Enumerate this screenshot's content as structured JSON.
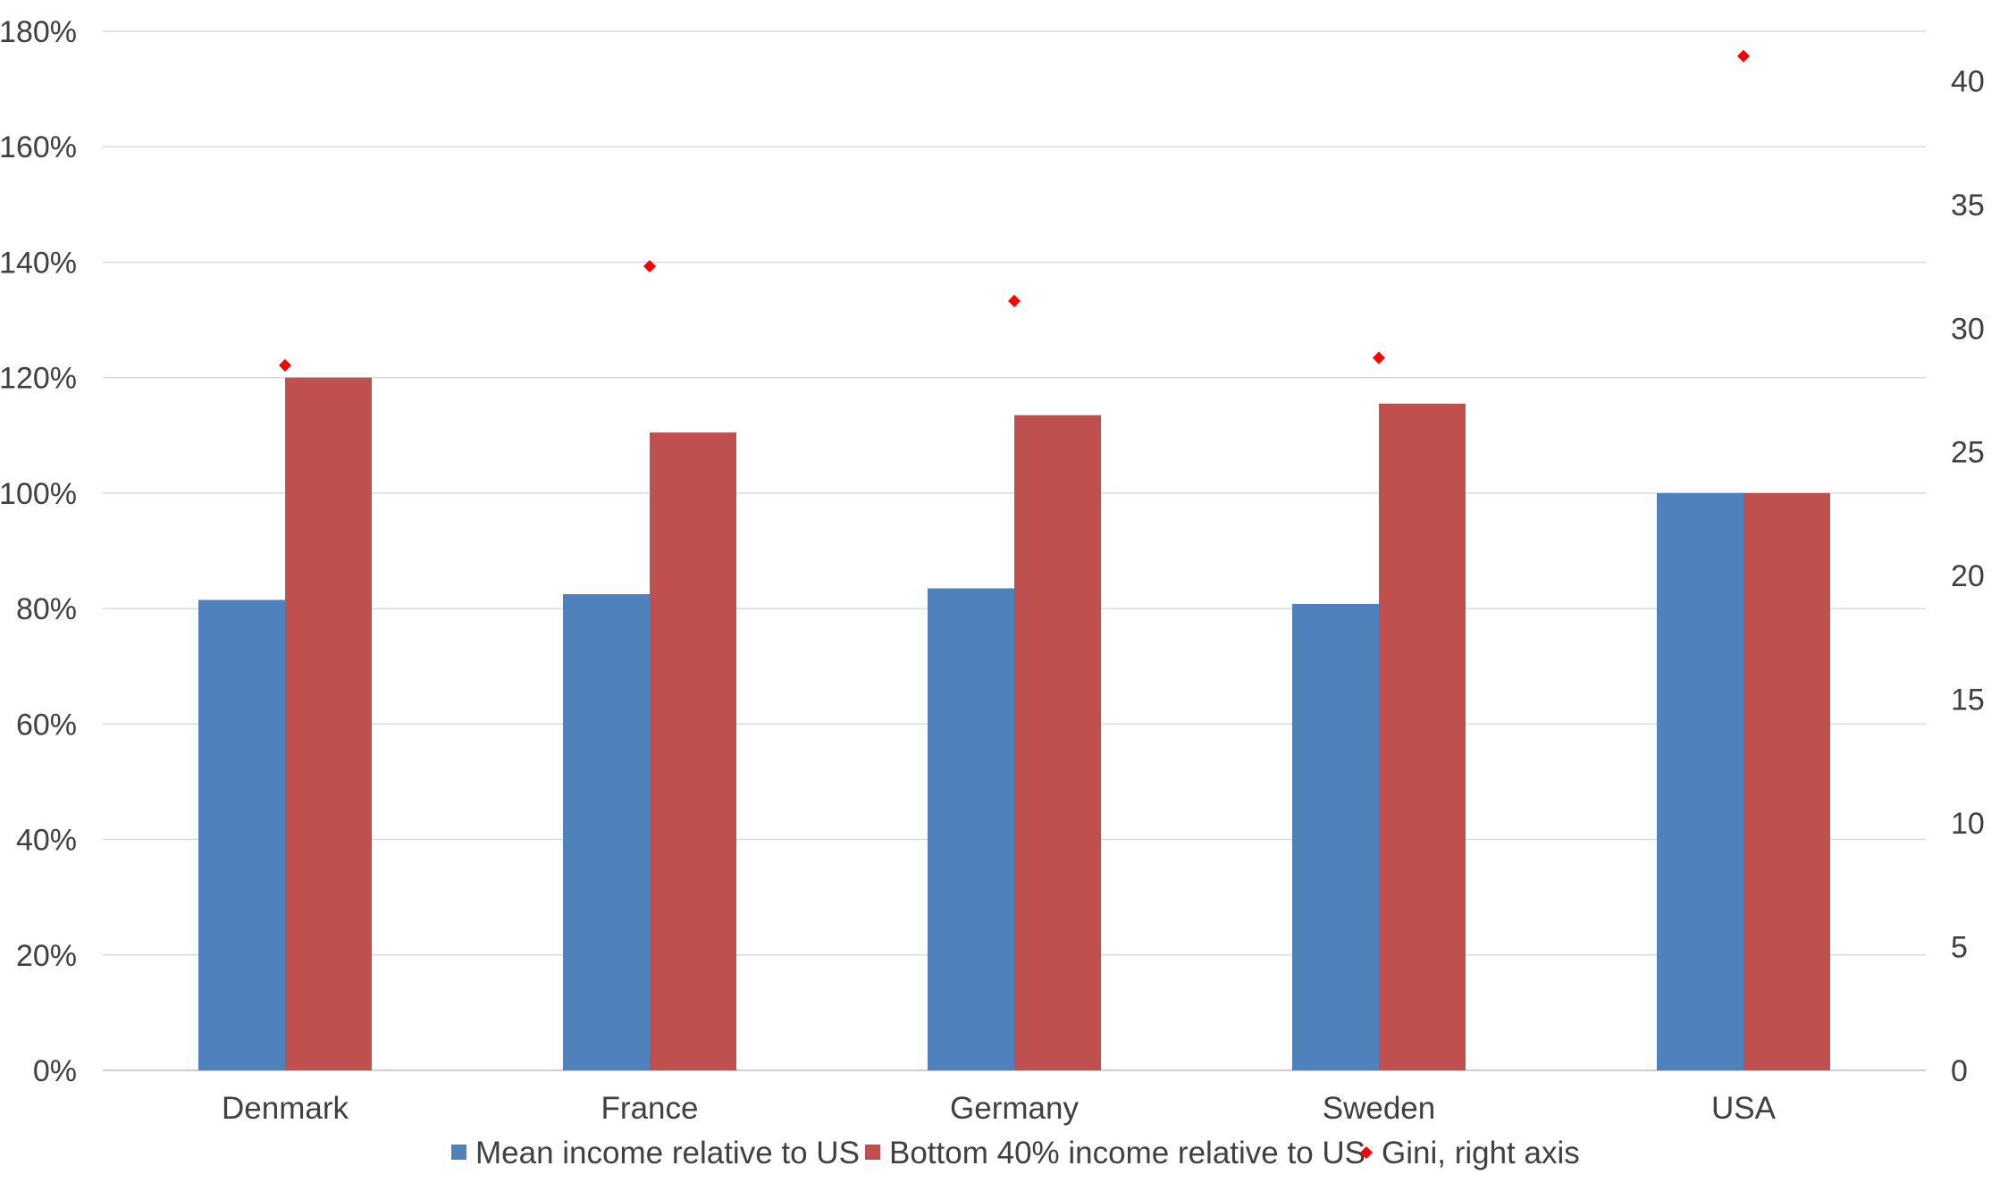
{
  "chart_data": {
    "type": "bar",
    "title": "",
    "xlabel": "",
    "ylabel": "",
    "y2label": "",
    "categories": [
      "Denmark",
      "France",
      "Germany",
      "Sweden",
      "USA"
    ],
    "series": [
      {
        "name": "Mean income relative to US",
        "kind": "bar",
        "axis": "left",
        "color": "#4F81BD",
        "values": [
          0.815,
          0.825,
          0.835,
          0.808,
          1.0
        ]
      },
      {
        "name": "Bottom 40% income relative to US",
        "kind": "bar",
        "axis": "left",
        "color": "#C0504D",
        "values": [
          1.2,
          1.105,
          1.135,
          1.155,
          1.0
        ]
      },
      {
        "name": "Gini, right axis",
        "kind": "scatter",
        "marker": "diamond",
        "axis": "right",
        "color": "#FF0000",
        "values": [
          28.5,
          32.5,
          31.1,
          28.8,
          41.0
        ]
      }
    ],
    "y_left": {
      "min": 0,
      "max": 1.8,
      "ticks": [
        0,
        0.2,
        0.4,
        0.6,
        0.8,
        1.0,
        1.2,
        1.4,
        1.6,
        1.8
      ],
      "tick_labels": [
        "0%",
        "20%",
        "40%",
        "60%",
        "80%",
        "100%",
        "120%",
        "140%",
        "160%",
        "180%"
      ]
    },
    "y_right": {
      "min": 0,
      "max": 42,
      "ticks": [
        0,
        5,
        10,
        15,
        20,
        25,
        30,
        35,
        40
      ],
      "tick_labels": [
        "0",
        "5",
        "10",
        "15",
        "20",
        "25",
        "30",
        "35",
        "40"
      ]
    },
    "grid": true,
    "gridline_color": "#D9D9D9",
    "legend_position": "bottom"
  }
}
